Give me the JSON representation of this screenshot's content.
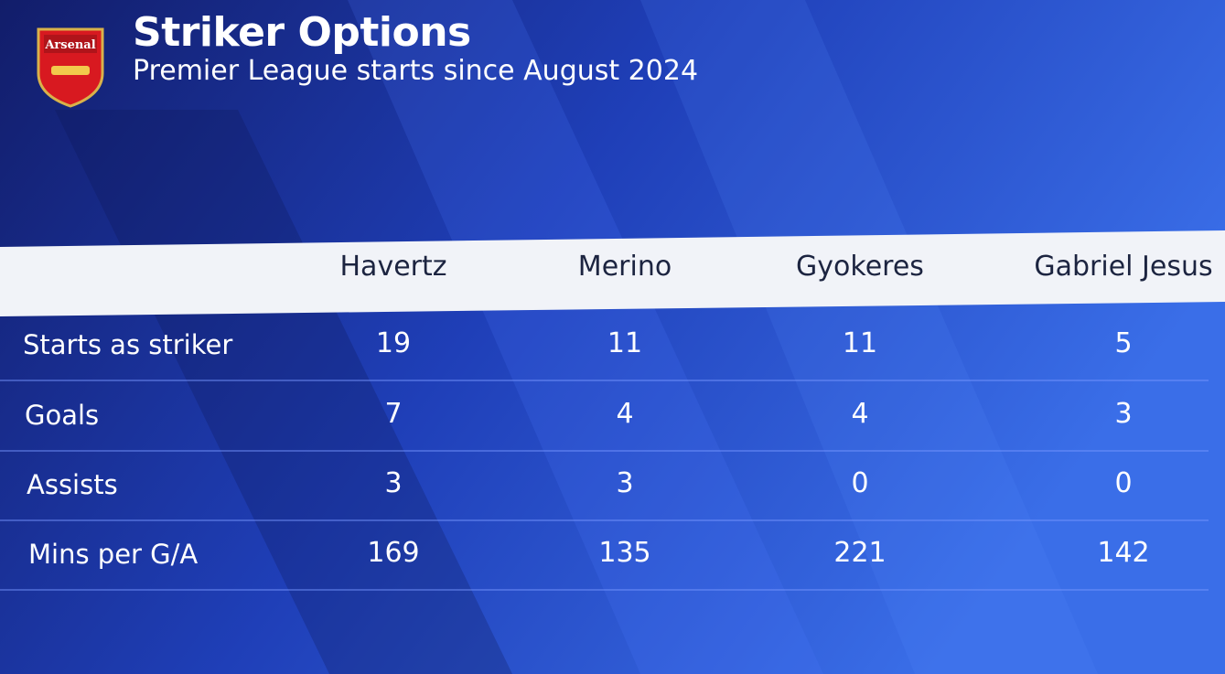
{
  "header": {
    "badge": "Arsenal",
    "title": "Striker Options",
    "subtitle": "Premier League starts since August 2024"
  },
  "table": {
    "columns": [
      "Havertz",
      "Merino",
      "Gyokeres",
      "Gabriel Jesus"
    ],
    "rows": [
      {
        "label": "Starts as striker",
        "cells": [
          19,
          11,
          11,
          5
        ]
      },
      {
        "label": "Goals",
        "cells": [
          7,
          4,
          4,
          3
        ]
      },
      {
        "label": "Assists",
        "cells": [
          3,
          3,
          0,
          0
        ]
      },
      {
        "label": "Mins per G/A",
        "cells": [
          169,
          135,
          221,
          142
        ]
      }
    ]
  }
}
